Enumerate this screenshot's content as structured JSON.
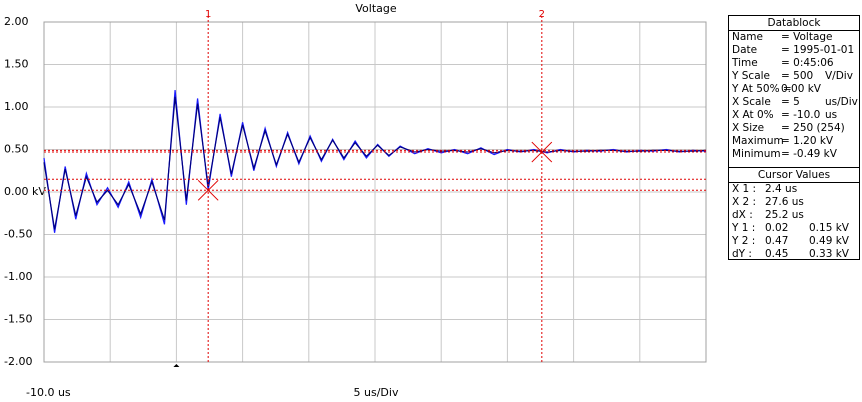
{
  "chart_data": {
    "type": "line",
    "title": "Voltage",
    "x_start_label": "-10.0 us",
    "x_scale_label": "5 us/Div",
    "xlim": [
      -10,
      40
    ],
    "ylim": [
      -2,
      2
    ],
    "xgrid": [
      -10,
      -5,
      0,
      5,
      10,
      15,
      20,
      25,
      30,
      35,
      40
    ],
    "yticks": [
      {
        "value": 2,
        "label": "2.00"
      },
      {
        "value": 1.5,
        "label": "1.50"
      },
      {
        "value": 1,
        "label": "1.00"
      },
      {
        "value": 0.5,
        "label": "0.50"
      },
      {
        "value": 0,
        "label": "0.00 kV"
      },
      {
        "value": -0.5,
        "label": "-0.50"
      },
      {
        "value": -1,
        "label": "-1.00"
      },
      {
        "value": -1.5,
        "label": "-1.50"
      },
      {
        "value": -2,
        "label": "-2.00"
      }
    ],
    "grid": true,
    "trigger_x": 0,
    "x": [
      -10,
      -9.2,
      -8.4,
      -7.6,
      -6.8,
      -6.0,
      -5.2,
      -4.4,
      -3.6,
      -2.7,
      -1.85,
      -0.9,
      -0.1,
      0.75,
      1.6,
      2.4,
      3.3,
      4.15,
      5.0,
      5.85,
      6.7,
      7.55,
      8.4,
      9.25,
      10.1,
      10.95,
      11.8,
      12.65,
      13.5,
      14.35,
      15.2,
      16.05,
      16.9,
      18,
      19,
      20,
      21,
      22,
      23,
      24,
      25,
      26,
      27,
      28,
      29,
      30,
      31,
      32,
      33,
      34,
      35,
      36,
      37,
      38,
      39,
      40
    ],
    "series": [
      {
        "color": "#1a1aff",
        "values": [
          0.4,
          -0.48,
          0.3,
          -0.32,
          0.22,
          -0.15,
          0.05,
          -0.18,
          0.12,
          -0.3,
          0.15,
          -0.38,
          1.2,
          -0.15,
          1.1,
          0.02,
          0.92,
          0.18,
          0.82,
          0.25,
          0.75,
          0.3,
          0.7,
          0.33,
          0.66,
          0.36,
          0.62,
          0.38,
          0.6,
          0.4,
          0.56,
          0.42,
          0.54,
          0.45,
          0.51,
          0.46,
          0.5,
          0.45,
          0.52,
          0.44,
          0.5,
          0.47,
          0.5,
          0.46,
          0.5,
          0.47,
          0.49,
          0.48,
          0.5,
          0.47,
          0.49,
          0.48,
          0.5,
          0.47,
          0.49,
          0.48
        ]
      },
      {
        "color": "#000080",
        "values": [
          0.35,
          -0.44,
          0.27,
          -0.28,
          0.18,
          -0.12,
          0.02,
          -0.15,
          0.09,
          -0.26,
          0.12,
          -0.33,
          1.12,
          -0.1,
          1.04,
          0.06,
          0.88,
          0.21,
          0.79,
          0.28,
          0.72,
          0.32,
          0.68,
          0.35,
          0.64,
          0.38,
          0.61,
          0.4,
          0.58,
          0.42,
          0.55,
          0.43,
          0.53,
          0.47,
          0.5,
          0.48,
          0.49,
          0.47,
          0.51,
          0.46,
          0.49,
          0.48,
          0.49,
          0.47,
          0.49,
          0.48,
          0.48,
          0.49,
          0.49,
          0.48,
          0.48,
          0.49,
          0.49,
          0.48,
          0.48,
          0.49
        ]
      }
    ],
    "cursor_color": "#e00000",
    "cursors": [
      {
        "label": "1",
        "x": 2.4,
        "y": [
          0.02,
          0.15
        ]
      },
      {
        "label": "2",
        "x": 27.6,
        "y": [
          0.47,
          0.49
        ]
      }
    ]
  },
  "datablock": {
    "title": "Datablock",
    "rows": [
      [
        "Name",
        "= Voltage"
      ],
      [
        "Date",
        "= 1995-01-01"
      ],
      [
        "Time",
        "= 0:45:06"
      ],
      [
        "Y Scale",
        "= 500",
        "V/Div"
      ],
      [
        "Y At 50% =",
        "0.00 kV"
      ],
      [
        "X Scale",
        "= 5",
        "us/Div"
      ],
      [
        "X At 0%",
        "= -10.0",
        "us"
      ],
      [
        "X Size",
        "= 250 (254)"
      ],
      [
        "Maximum",
        "= 1.20 kV"
      ],
      [
        "Minimum",
        "= -0.49 kV"
      ]
    ]
  },
  "cursor_values": {
    "title": "Cursor Values",
    "rows": [
      [
        "X 1 :",
        "2.4 us"
      ],
      [
        "X 2 :",
        "27.6 us"
      ],
      [
        "dX :",
        "25.2 us"
      ],
      [
        "Y 1 :",
        "0.02",
        "0.15 kV"
      ],
      [
        "Y 2 :",
        "0.47",
        "0.49 kV"
      ],
      [
        "dY :",
        "0.45",
        "0.33 kV"
      ]
    ]
  }
}
